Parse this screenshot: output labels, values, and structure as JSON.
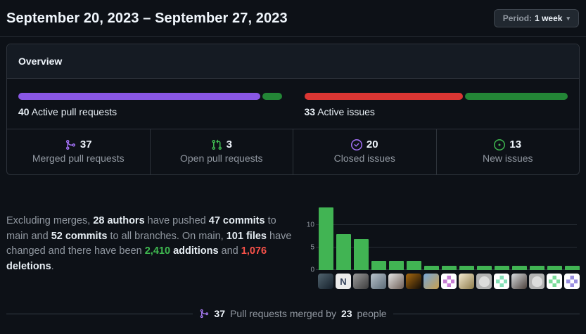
{
  "header": {
    "title": "September 20, 2023 – September 27, 2023",
    "period_button": {
      "prefix": "Period:",
      "value": "1 week"
    }
  },
  "overview": {
    "title": "Overview",
    "pull_requests_meter": {
      "count": "40",
      "label": "Active pull requests",
      "segments": [
        {
          "name": "merged",
          "value": 37,
          "color": "#8957e5"
        },
        {
          "name": "open",
          "value": 3,
          "color": "#238636"
        }
      ]
    },
    "issues_meter": {
      "count": "33",
      "label": "Active issues",
      "segments": [
        {
          "name": "closed",
          "value": 20,
          "color": "#da3633"
        },
        {
          "name": "new",
          "value": 13,
          "color": "#238636"
        }
      ]
    },
    "stats": [
      {
        "icon": "git-merge-icon",
        "icon_color": "#a371f7",
        "value": "37",
        "label": "Merged pull requests"
      },
      {
        "icon": "git-pull-request-icon",
        "icon_color": "#3fb950",
        "value": "3",
        "label": "Open pull requests"
      },
      {
        "icon": "issue-closed-icon",
        "icon_color": "#a371f7",
        "value": "20",
        "label": "Closed issues"
      },
      {
        "icon": "issue-opened-icon",
        "icon_color": "#3fb950",
        "value": "13",
        "label": "New issues"
      }
    ]
  },
  "summary": {
    "segments": [
      {
        "t": "Excluding merges, "
      },
      {
        "t": "28 authors",
        "s": "b"
      },
      {
        "t": " have pushed "
      },
      {
        "t": "47 commits",
        "s": "b"
      },
      {
        "t": " to main and "
      },
      {
        "t": "52 commits",
        "s": "b"
      },
      {
        "t": " to all branches. On main, "
      },
      {
        "t": "101 files",
        "s": "b"
      },
      {
        "t": " have changed and there have been "
      },
      {
        "t": "2,410",
        "s": "green"
      },
      {
        "t": " "
      },
      {
        "t": "additions",
        "s": "b"
      },
      {
        "t": " and "
      },
      {
        "t": "1,076",
        "s": "red"
      },
      {
        "t": " "
      },
      {
        "t": "deletions",
        "s": "b"
      },
      {
        "t": "."
      }
    ]
  },
  "chart_data": {
    "type": "bar",
    "title": "Commits per contributor (top 15)",
    "x_axis": "contributor avatars",
    "values": [
      14,
      8,
      7,
      2,
      2,
      2,
      1,
      1,
      1,
      1,
      1,
      1,
      1,
      1,
      1
    ],
    "yticks": [
      0,
      5,
      10
    ],
    "ylim": [
      0,
      14
    ],
    "bar_color": "#41b453",
    "grid": true,
    "legend": false,
    "xlabel": "",
    "ylabel": ""
  },
  "contributors": [
    {
      "type": "photo",
      "c1": "#51646f",
      "c2": "#15202b"
    },
    {
      "type": "letter",
      "letter": "N",
      "bg": "#ececec",
      "fg": "#33415c"
    },
    {
      "type": "photo",
      "c1": "#9a9a9a",
      "c2": "#3c3c3c"
    },
    {
      "type": "photo",
      "c1": "#b9c3cc",
      "c2": "#5a6a76"
    },
    {
      "type": "photo",
      "c1": "#e3e3e3",
      "c2": "#6e5f58"
    },
    {
      "type": "photo",
      "c1": "#a8690f",
      "c2": "#120d07"
    },
    {
      "type": "photo",
      "c1": "#77a7d9",
      "c2": "#c9a04e"
    },
    {
      "type": "identicon",
      "bg": "#ffffff",
      "fg": "#c77fd4"
    },
    {
      "type": "photo",
      "c1": "#f4ead0",
      "c2": "#8d7b4a"
    },
    {
      "type": "octocat",
      "bg": "#b3b3b3",
      "fg": "#dcdcdc"
    },
    {
      "type": "identicon",
      "bg": "#ffffff",
      "fg": "#86e0b8"
    },
    {
      "type": "photo",
      "c1": "#d9dde0",
      "c2": "#4a3f3a"
    },
    {
      "type": "octocat",
      "bg": "#b3b3b3",
      "fg": "#dcdcdc"
    },
    {
      "type": "identicon",
      "bg": "#ffffff",
      "fg": "#7bdc9a"
    },
    {
      "type": "identicon",
      "bg": "#ffffff",
      "fg": "#9a8fe0"
    }
  ],
  "footer": {
    "value": "37",
    "text": "Pull requests merged by",
    "count": "23",
    "suffix": "people"
  }
}
